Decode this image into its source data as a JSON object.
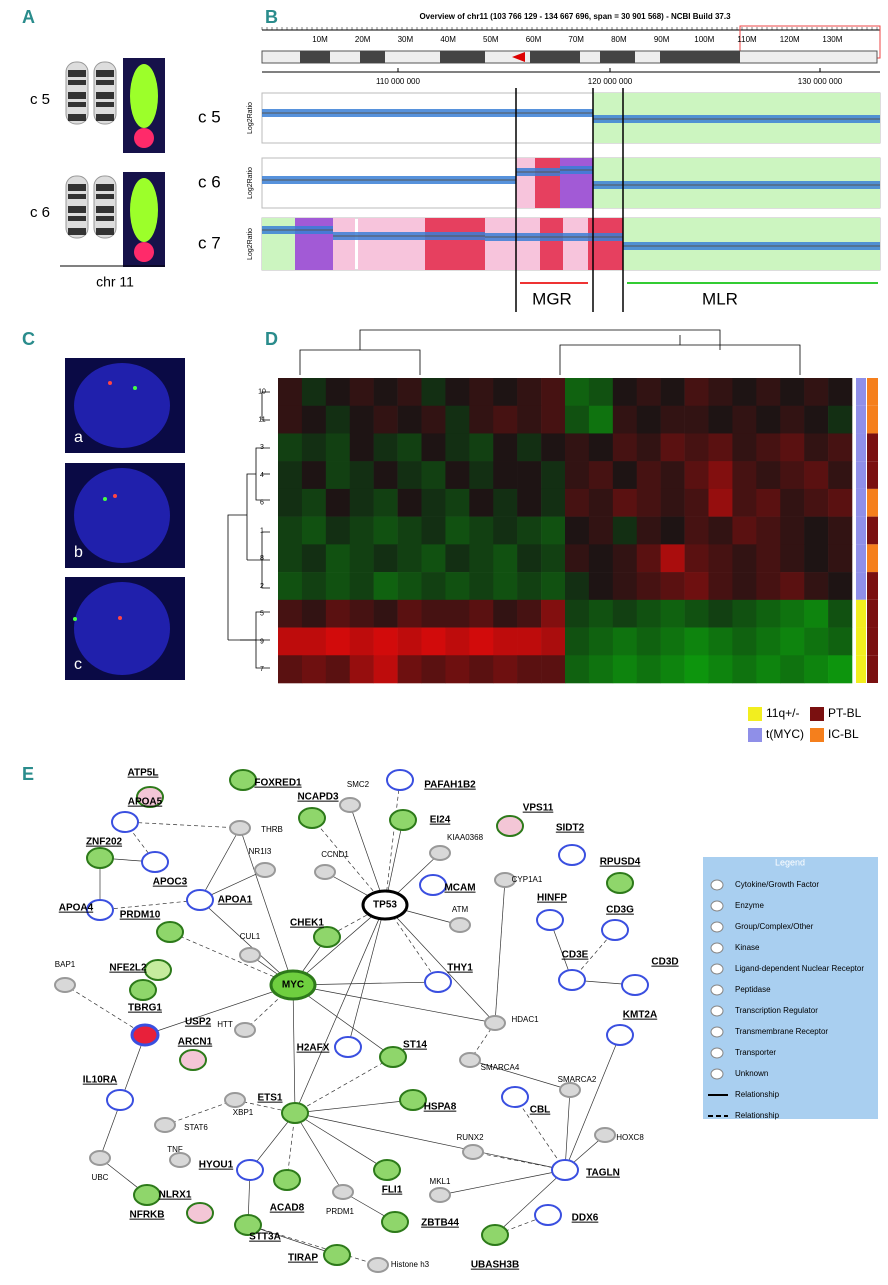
{
  "panel_labels": [
    "A",
    "B",
    "C",
    "D",
    "E"
  ],
  "panel_a": {
    "rows": [
      "c 5",
      "c 6"
    ],
    "axis_label": "chr 11"
  },
  "panel_b": {
    "title": "Overview of chr11 (103 766 129 - 134 667 696, span = 30 901 568) - NCBI Build 37.3",
    "ideogram_ticks": [
      "10M",
      "20M",
      "30M",
      "40M",
      "50M",
      "60M",
      "70M",
      "80M",
      "90M",
      "100M",
      "110M",
      "120M",
      "130M"
    ],
    "scale_ticks": [
      "110 000 000",
      "120 000 000",
      "130 000 000"
    ],
    "rows": [
      "c 5",
      "c 6",
      "c 7"
    ],
    "y_label": "Log2Ratio",
    "regions": [
      "MGR",
      "MLR"
    ]
  },
  "panel_c": {
    "labels": [
      "a",
      "b",
      "c"
    ]
  },
  "panel_d": {
    "row_labels": [
      "10",
      "11",
      "3",
      "4",
      "6",
      "1",
      "8",
      "2",
      "5",
      "9",
      "7"
    ],
    "values": [
      [
        0.1,
        -0.1,
        0,
        0.1,
        0,
        0.1,
        -0.1,
        0,
        0.1,
        0,
        0.1,
        0.2,
        -0.4,
        -0.3,
        0,
        0.1,
        0,
        0.2,
        0.1,
        0,
        0.1,
        0,
        0.1,
        0
      ],
      [
        0.1,
        0,
        -0.1,
        0,
        0.1,
        0,
        0.1,
        -0.1,
        0.1,
        0.2,
        0.1,
        0.2,
        -0.3,
        -0.5,
        0.1,
        0,
        0.1,
        0.1,
        0,
        0.1,
        0,
        0.1,
        0,
        -0.1
      ],
      [
        -0.2,
        -0.1,
        -0.2,
        0,
        -0.1,
        -0.2,
        0,
        -0.1,
        -0.2,
        0,
        -0.1,
        0,
        0.1,
        0,
        0.2,
        0.1,
        0.3,
        0.2,
        0.3,
        0.1,
        0.2,
        0.3,
        0.1,
        0.2
      ],
      [
        -0.1,
        0,
        -0.2,
        -0.1,
        0,
        -0.1,
        -0.2,
        0,
        -0.1,
        0,
        0,
        -0.1,
        0.1,
        0.2,
        0,
        0.2,
        0.1,
        0.3,
        0.5,
        0.2,
        0.1,
        0.2,
        0.3,
        0.1
      ],
      [
        -0.1,
        -0.2,
        0,
        -0.1,
        -0.2,
        0,
        -0.1,
        -0.2,
        0,
        -0.1,
        0,
        -0.1,
        0.2,
        0.1,
        0.3,
        0.2,
        0.1,
        0.2,
        0.6,
        0.2,
        0.3,
        0.1,
        0.2,
        0.3
      ],
      [
        -0.2,
        -0.3,
        -0.1,
        -0.2,
        -0.3,
        -0.2,
        -0.1,
        -0.3,
        -0.2,
        -0.1,
        -0.2,
        -0.3,
        0,
        0.1,
        -0.1,
        0.1,
        0,
        0.2,
        0.1,
        0.3,
        0.2,
        0.1,
        0,
        0.1
      ],
      [
        -0.2,
        -0.1,
        -0.3,
        -0.2,
        -0.1,
        -0.2,
        -0.3,
        -0.1,
        -0.2,
        -0.3,
        -0.1,
        -0.2,
        0.1,
        0,
        0.1,
        0.3,
        0.7,
        0.3,
        0.2,
        0.1,
        0.2,
        0.1,
        0,
        0.1
      ],
      [
        -0.3,
        -0.2,
        -0.3,
        -0.2,
        -0.4,
        -0.3,
        -0.2,
        -0.3,
        -0.2,
        -0.3,
        -0.2,
        -0.3,
        -0.1,
        0,
        0.1,
        0.2,
        0.3,
        0.4,
        0.2,
        0.1,
        0.2,
        0.3,
        0.1,
        0
      ],
      [
        0.2,
        0.1,
        0.3,
        0.2,
        0.1,
        0.3,
        0.2,
        0.2,
        0.3,
        0.1,
        0.2,
        0.5,
        -0.2,
        -0.3,
        -0.2,
        -0.3,
        -0.4,
        -0.3,
        -0.2,
        -0.3,
        -0.4,
        -0.5,
        -0.6,
        -0.3
      ],
      [
        0.8,
        0.8,
        0.9,
        0.8,
        0.9,
        0.8,
        0.9,
        0.8,
        0.9,
        0.8,
        0.8,
        0.7,
        -0.3,
        -0.4,
        -0.5,
        -0.4,
        -0.5,
        -0.6,
        -0.5,
        -0.4,
        -0.5,
        -0.6,
        -0.5,
        -0.4
      ],
      [
        0.3,
        0.4,
        0.3,
        0.6,
        0.8,
        0.4,
        0.3,
        0.4,
        0.3,
        0.4,
        0.3,
        0.3,
        -0.4,
        -0.5,
        -0.6,
        -0.5,
        -0.6,
        -0.7,
        -0.6,
        -0.5,
        -0.6,
        -0.5,
        -0.6,
        -0.7
      ]
    ],
    "genotype": [
      1,
      1,
      1,
      1,
      1,
      1,
      1,
      1,
      0,
      0,
      0
    ],
    "subtype": [
      3,
      3,
      2,
      2,
      3,
      2,
      3,
      2,
      2,
      2,
      2
    ],
    "legend": [
      {
        "label": "11q+/-",
        "color": "#f2ee1f"
      },
      {
        "label": "t(MYC)",
        "color": "#8f8fe8"
      },
      {
        "label": "PT-BL",
        "color": "#7a1010"
      },
      {
        "label": "IC-BL",
        "color": "#f57f1c"
      }
    ]
  },
  "panel_e": {
    "nodes": [
      {
        "label": "ATP5L",
        "color": "#f3c6d6"
      },
      {
        "label": "FOXRED1",
        "color": "#8fd66b"
      },
      {
        "label": "SMC2",
        "color": "#d8d8d8"
      },
      {
        "label": "PAFAH1B2",
        "color": "#3a4fe0"
      },
      {
        "label": "APOA5",
        "color": "#3a4fe0"
      },
      {
        "label": "THRB",
        "color": "#d8d8d8"
      },
      {
        "label": "NCAPD3",
        "color": "#8fd66b"
      },
      {
        "label": "EI24",
        "color": "#8fd66b"
      },
      {
        "label": "VPS11",
        "color": "#f3c6d6"
      },
      {
        "label": "SIDT2",
        "color": "#3a4fe0"
      },
      {
        "label": "ZNF202",
        "color": "#8fd66b"
      },
      {
        "label": "APOC3",
        "color": "#3a4fe0"
      },
      {
        "label": "NR1I3",
        "color": "#d8d8d8"
      },
      {
        "label": "CCND1",
        "color": "#d8d8d8"
      },
      {
        "label": "KIAA0368",
        "color": "#d8d8d8"
      },
      {
        "label": "RPUSD4",
        "color": "#8fd66b"
      },
      {
        "label": "CYP1A1",
        "color": "#d8d8d8"
      },
      {
        "label": "APOA4",
        "color": "#3a4fe0"
      },
      {
        "label": "APOA1",
        "color": "#3a4fe0"
      },
      {
        "label": "TP53",
        "color": "#ffffff"
      },
      {
        "label": "MCAM",
        "color": "#3a4fe0"
      },
      {
        "label": "ATM",
        "color": "#d8d8d8"
      },
      {
        "label": "HINFP",
        "color": "#3a4fe0"
      },
      {
        "label": "CD3G",
        "color": "#3a4fe0"
      },
      {
        "label": "PRDM10",
        "color": "#8fd66b"
      },
      {
        "label": "CHEK1",
        "color": "#8fd66b"
      },
      {
        "label": "CUL1",
        "color": "#d8d8d8"
      },
      {
        "label": "NFE2L2",
        "color": "#c6ec9e"
      },
      {
        "label": "BAP1",
        "color": "#d8d8d8"
      },
      {
        "label": "TBRG1",
        "color": "#8fd66b"
      },
      {
        "label": "MYC",
        "color": "#6fcf3f"
      },
      {
        "label": "THY1",
        "color": "#3a4fe0"
      },
      {
        "label": "CD3E",
        "color": "#3a4fe0"
      },
      {
        "label": "CD3D",
        "color": "#3a4fe0"
      },
      {
        "label": "USP2",
        "color": "#e8203a"
      },
      {
        "label": "HTT",
        "color": "#d8d8d8"
      },
      {
        "label": "HDAC1",
        "color": "#d8d8d8"
      },
      {
        "label": "KMT2A",
        "color": "#3a4fe0"
      },
      {
        "label": "ARCN1",
        "color": "#f3c6d6"
      },
      {
        "label": "H2AFX",
        "color": "#3a4fe0"
      },
      {
        "label": "ST14",
        "color": "#8fd66b"
      },
      {
        "label": "SMARCA4",
        "color": "#d8d8d8"
      },
      {
        "label": "IL10RA",
        "color": "#3a4fe0"
      },
      {
        "label": "XBP1",
        "color": "#d8d8d8"
      },
      {
        "label": "ETS1",
        "color": "#8fd66b"
      },
      {
        "label": "CBL",
        "color": "#3a4fe0"
      },
      {
        "label": "SMARCA2",
        "color": "#d8d8d8"
      },
      {
        "label": "HSPA8",
        "color": "#8fd66b"
      },
      {
        "label": "HOXC8",
        "color": "#d8d8d8"
      },
      {
        "label": "STAT6",
        "color": "#d8d8d8"
      },
      {
        "label": "RUNX2",
        "color": "#d8d8d8"
      },
      {
        "label": "UBC",
        "color": "#d8d8d8"
      },
      {
        "label": "TNF",
        "color": "#d8d8d8"
      },
      {
        "label": "HYOU1",
        "color": "#3a4fe0"
      },
      {
        "label": "ACAD8",
        "color": "#8fd66b"
      },
      {
        "label": "FLI1",
        "color": "#8fd66b"
      },
      {
        "label": "MKL1",
        "color": "#d8d8d8"
      },
      {
        "label": "TAGLN",
        "color": "#3a4fe0"
      },
      {
        "label": "NFRKB",
        "color": "#8fd66b"
      },
      {
        "label": "NLRX1",
        "color": "#f3c6d6"
      },
      {
        "label": "PRDM1",
        "color": "#d8d8d8"
      },
      {
        "label": "STT3A",
        "color": "#8fd66b"
      },
      {
        "label": "ZBTB44",
        "color": "#8fd66b"
      },
      {
        "label": "DDX6",
        "color": "#3a4fe0"
      },
      {
        "label": "TIRAP",
        "color": "#8fd66b"
      },
      {
        "label": "Histone h3",
        "color": "#d8d8d8"
      },
      {
        "label": "UBASH3B",
        "color": "#8fd66b"
      }
    ],
    "legend": {
      "title": "Legend",
      "items": [
        "Cytokine/Growth Factor",
        "Enzyme",
        "Group/Complex/Other",
        "Kinase",
        "Ligand-dependent Nuclear Receptor",
        "Peptidase",
        "Transcription Regulator",
        "Transmembrane Receptor",
        "Transporter",
        "Unknown",
        "Relationship",
        "Relationship"
      ]
    }
  }
}
